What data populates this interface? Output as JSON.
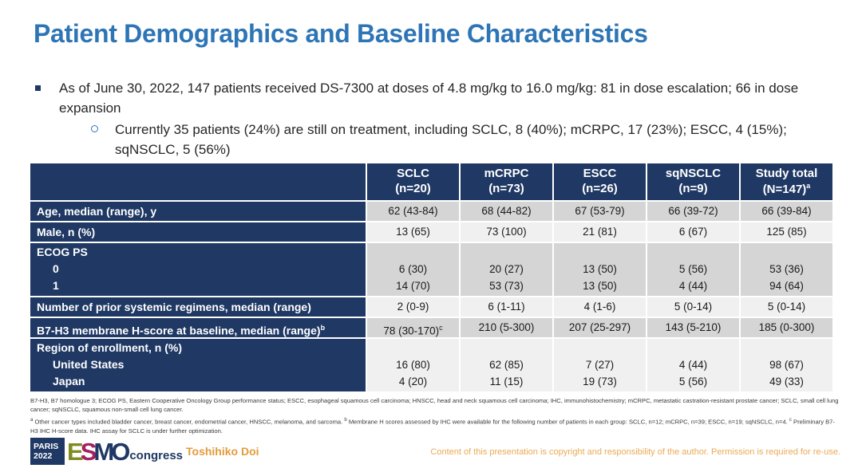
{
  "slide": {
    "title": "Patient Demographics and Baseline Characteristics",
    "bullets": {
      "main": "As of June 30, 2022, 147 patients received DS-7300 at doses of 4.8 mg/kg to 16.0 mg/kg: 81 in dose escalation; 66 in dose expansion",
      "sub": "Currently 35 patients (24%) are still on treatment, including SCLC, 8 (40%); mCRPC, 17 (23%); ESCC, 4 (15%); sqNSCLC, 5 (56%)"
    }
  },
  "table": {
    "columns": [
      {
        "line1": "SCLC",
        "line2": "(n=20)"
      },
      {
        "line1": "mCRPC",
        "line2": "(n=73)"
      },
      {
        "line1": "ESCC",
        "line2": "(n=26)"
      },
      {
        "line1": "sqNSCLC",
        "line2": "(n=9)"
      },
      {
        "line1": "Study total",
        "line2": "(N=147)",
        "sup": "a"
      }
    ],
    "rows": [
      {
        "label": "Age, median (range), y",
        "cells": [
          "62 (43-84)",
          "68 (44-82)",
          "67 (53-79)",
          "66 (39-72)",
          "66 (39-84)"
        ]
      },
      {
        "label": "Male, n (%)",
        "cells": [
          "13 (65)",
          "73 (100)",
          "21 (81)",
          "6 (67)",
          "125 (85)"
        ]
      },
      {
        "label": "ECOG PS",
        "subrows": [
          {
            "label": "0",
            "cells": [
              "6 (30)",
              "20 (27)",
              "13 (50)",
              "5 (56)",
              "53 (36)"
            ]
          },
          {
            "label": "1",
            "cells": [
              "14 (70)",
              "53 (73)",
              "13 (50)",
              "4 (44)",
              "94 (64)"
            ]
          }
        ]
      },
      {
        "label": "Number of prior systemic regimens, median (range)",
        "cells": [
          "2 (0-9)",
          "6 (1-11)",
          "4 (1-6)",
          "5 (0-14)",
          "5 (0-14)"
        ]
      },
      {
        "label": "B7-H3 membrane H-score at baseline, median (range)",
        "label_sup": "b",
        "cells": [
          "78 (30-170)",
          "210 (5-300)",
          "207 (25-297)",
          "143 (5-210)",
          "185 (0-300)"
        ],
        "cell0_sup": "c"
      },
      {
        "label": "Region of enrollment, n (%)",
        "subrows": [
          {
            "label": "United States",
            "cells": [
              "16 (80)",
              "62 (85)",
              "7 (27)",
              "4 (44)",
              "98 (67)"
            ]
          },
          {
            "label": "Japan",
            "cells": [
              "4 (20)",
              "11 (15)",
              "19 (73)",
              "5 (56)",
              "49 (33)"
            ]
          }
        ]
      }
    ]
  },
  "footnotes": {
    "abbreviations": "B7-H3, B7 homologue 3; ECOG PS, Eastern Cooperative Oncology Group performance status; ESCC, esophageal squamous cell carcinoma; HNSCC, head and neck squamous cell carcinoma; IHC, immunohistochemistry; mCRPC, metastatic castration-resistant prostate cancer; SCLC, small cell lung cancer; sqNSCLC, squamous non-small cell lung cancer.",
    "sup_a": "a",
    "seg_a": " Other cancer types included bladder cancer, breast cancer, endometrial cancer, HNSCC, melanoma, and sarcoma. ",
    "sup_b": "b",
    "seg_b": " Membrane H scores assessed by IHC were available for the following number of patients in each group: SCLC, n=12; mCRPC, n=39; ESCC, n=19; sqNSCLC, n=4. ",
    "sup_c": "c",
    "seg_c": " Preliminary B7-H3 IHC H-score data. IHC assay for SCLC is under further optimization."
  },
  "footer": {
    "badge": {
      "city": "PARIS",
      "year": "2022",
      "letters": [
        "E",
        "S",
        "M",
        "O"
      ],
      "congress": "congress"
    },
    "presenter": "Toshihiko Doi",
    "copyright": "Content of this presentation is copyright and responsibility of the author. Permission is required for re-use."
  },
  "colors": {
    "title_blue": "#2E75B6",
    "table_navy": "#1F3864",
    "row_gray": "#D5D5D5",
    "row_light": "#F0F0F0",
    "presenter_orange": "#E39B3B",
    "copyright_orange": "#EAAA55",
    "esmo_green": "#7E8C1F",
    "esmo_magenta": "#A42060",
    "esmo_navy": "#1F3864"
  }
}
